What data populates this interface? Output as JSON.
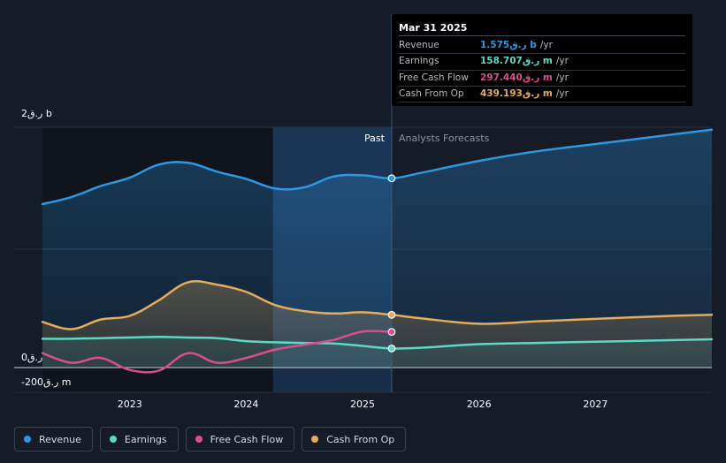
{
  "colors": {
    "revenue": "#2e97e3",
    "earnings": "#5cd9c4",
    "free_cash_flow": "#d94f8c",
    "cash_from_op": "#e5ac5c",
    "background": "#151b27",
    "grid": "#2a303b"
  },
  "tooltip": {
    "date": "Mar 31 2025",
    "rows": [
      {
        "label": "Revenue",
        "value": "1.575ر.ق b",
        "unit": "/yr",
        "color": "#2e97e3"
      },
      {
        "label": "Earnings",
        "value": "158.707ر.ق m",
        "unit": "/yr",
        "color": "#5cd9c4"
      },
      {
        "label": "Free Cash Flow",
        "value": "297.440ر.ق m",
        "unit": "/yr",
        "color": "#d94f8c"
      },
      {
        "label": "Cash From Op",
        "value": "439.193ر.ق m",
        "unit": "/yr",
        "color": "#e5ac5c"
      }
    ]
  },
  "labels": {
    "past": "Past",
    "forecast": "Analysts Forecasts"
  },
  "legend": {
    "items": [
      {
        "label": "Revenue",
        "color": "#2e97e3"
      },
      {
        "label": "Earnings",
        "color": "#5cd9c4"
      },
      {
        "label": "Free Cash Flow",
        "color": "#d94f8c"
      },
      {
        "label": "Cash From Op",
        "color": "#e5ac5c"
      }
    ]
  },
  "chart_data": {
    "type": "area",
    "title": "",
    "xlabel": "",
    "ylabel": "",
    "y_tick_labels": [
      "2ر.ق b",
      "0ر.ق",
      "-200ر.ق m"
    ],
    "x_tick_labels": [
      "2023",
      "2024",
      "2025",
      "2026",
      "2027"
    ],
    "xlim": [
      2022.25,
      2028.0
    ],
    "ylim": [
      -200,
      2000
    ],
    "past_end": 2025.25,
    "highlight_start": 2024.23,
    "series": [
      {
        "name": "Revenue",
        "unit": "m",
        "points": [
          [
            2022.25,
            1360
          ],
          [
            2022.5,
            1420
          ],
          [
            2022.75,
            1510
          ],
          [
            2023.0,
            1580
          ],
          [
            2023.25,
            1690
          ],
          [
            2023.5,
            1705
          ],
          [
            2023.75,
            1630
          ],
          [
            2024.0,
            1570
          ],
          [
            2024.25,
            1490
          ],
          [
            2024.5,
            1500
          ],
          [
            2024.75,
            1590
          ],
          [
            2025.0,
            1600
          ],
          [
            2025.25,
            1575
          ],
          [
            2025.5,
            1620
          ],
          [
            2026.0,
            1720
          ],
          [
            2026.5,
            1800
          ],
          [
            2027.0,
            1860
          ],
          [
            2027.5,
            1920
          ],
          [
            2028.0,
            1980
          ]
        ]
      },
      {
        "name": "Earnings",
        "unit": "m",
        "points": [
          [
            2022.25,
            240
          ],
          [
            2022.5,
            240
          ],
          [
            2022.75,
            245
          ],
          [
            2023.0,
            250
          ],
          [
            2023.25,
            255
          ],
          [
            2023.5,
            250
          ],
          [
            2023.75,
            245
          ],
          [
            2024.0,
            220
          ],
          [
            2024.25,
            210
          ],
          [
            2024.5,
            205
          ],
          [
            2024.75,
            200
          ],
          [
            2025.0,
            180
          ],
          [
            2025.25,
            159
          ],
          [
            2025.5,
            165
          ],
          [
            2026.0,
            195
          ],
          [
            2026.5,
            205
          ],
          [
            2027.0,
            215
          ],
          [
            2027.5,
            225
          ],
          [
            2028.0,
            235
          ]
        ]
      },
      {
        "name": "Free Cash Flow",
        "unit": "m",
        "points": [
          [
            2022.25,
            120
          ],
          [
            2022.5,
            40
          ],
          [
            2022.75,
            80
          ],
          [
            2023.0,
            -20
          ],
          [
            2023.25,
            -25
          ],
          [
            2023.5,
            120
          ],
          [
            2023.75,
            40
          ],
          [
            2024.0,
            80
          ],
          [
            2024.25,
            150
          ],
          [
            2024.5,
            190
          ],
          [
            2024.75,
            230
          ],
          [
            2025.0,
            300
          ],
          [
            2025.25,
            297
          ]
        ]
      },
      {
        "name": "Cash From Op",
        "unit": "m",
        "points": [
          [
            2022.25,
            380
          ],
          [
            2022.5,
            320
          ],
          [
            2022.75,
            400
          ],
          [
            2023.0,
            430
          ],
          [
            2023.25,
            560
          ],
          [
            2023.5,
            710
          ],
          [
            2023.75,
            690
          ],
          [
            2024.0,
            630
          ],
          [
            2024.25,
            520
          ],
          [
            2024.5,
            470
          ],
          [
            2024.75,
            450
          ],
          [
            2025.0,
            460
          ],
          [
            2025.25,
            439
          ],
          [
            2025.5,
            410
          ],
          [
            2026.0,
            365
          ],
          [
            2026.5,
            385
          ],
          [
            2027.0,
            405
          ],
          [
            2027.5,
            425
          ],
          [
            2028.0,
            440
          ]
        ]
      }
    ]
  }
}
